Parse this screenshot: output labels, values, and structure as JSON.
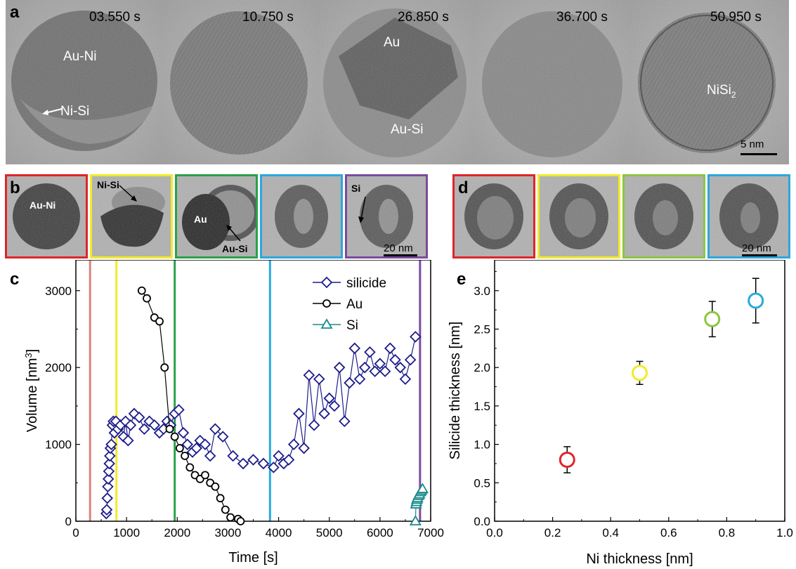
{
  "panel_a": {
    "letter": "a",
    "times": [
      "03.550 s",
      "10.750 s",
      "26.850 s",
      "36.700 s",
      "50.950 s"
    ],
    "labels": {
      "au_ni": "Au-Ni",
      "ni_si": "Ni-Si",
      "au": "Au",
      "au_si": "Au-Si",
      "nisi2": "NiSi",
      "nisi2_sub": "2"
    },
    "scale_bar": "5 nm"
  },
  "panel_b": {
    "letter": "b",
    "labels": {
      "au_ni": "Au-Ni",
      "ni_si": "Ni-Si",
      "au": "Au",
      "au_si": "Au-Si",
      "si": "Si"
    },
    "frame_colors": [
      "#e0242a",
      "#f2ea2c",
      "#2aa14a",
      "#2aa8de",
      "#7b4a9e"
    ],
    "scale_bar": "20 nm"
  },
  "panel_d": {
    "letter": "d",
    "frame_colors": [
      "#e0242a",
      "#f2ea2c",
      "#8cc63f",
      "#2aa8de"
    ],
    "scale_bar": "20 nm"
  },
  "panel_c": {
    "letter": "c",
    "chart_data": {
      "type": "line",
      "xlabel": "Time [s]",
      "ylabel": "Volume [nm",
      "ylabel_sup": "3",
      "ylabel_end": "]",
      "xlim": [
        0,
        7000
      ],
      "ylim": [
        0,
        3400
      ],
      "xticks": [
        0,
        1000,
        2000,
        3000,
        4000,
        5000,
        6000,
        7000
      ],
      "yticks": [
        0,
        1000,
        2000,
        3000
      ],
      "legend": "top-right",
      "vlines": [
        {
          "x": 280,
          "color": "#d9847f"
        },
        {
          "x": 800,
          "color": "#f2ea2c"
        },
        {
          "x": 1950,
          "color": "#2aa14a"
        },
        {
          "x": 3830,
          "color": "#2aa8de"
        },
        {
          "x": 6790,
          "color": "#7b4a9e"
        }
      ],
      "series": [
        {
          "name": "silicide",
          "color": "#1c1c8a",
          "marker": "diamond",
          "x": [
            600,
            610,
            620,
            630,
            640,
            650,
            660,
            670,
            680,
            700,
            720,
            740,
            760,
            790,
            830,
            880,
            940,
            980,
            1030,
            1080,
            1150,
            1250,
            1350,
            1450,
            1550,
            1650,
            1730,
            1800,
            1870,
            1950,
            2030,
            2120,
            2200,
            2300,
            2380,
            2450,
            2550,
            2650,
            2750,
            2900,
            3100,
            3300,
            3500,
            3700,
            3900,
            4000,
            4100,
            4200,
            4300,
            4400,
            4500,
            4600,
            4700,
            4800,
            4900,
            5000,
            5100,
            5200,
            5300,
            5400,
            5500,
            5600,
            5700,
            5800,
            5900,
            6000,
            6100,
            6200,
            6300,
            6400,
            6500,
            6600,
            6700
          ],
          "y": [
            100,
            150,
            300,
            450,
            550,
            650,
            750,
            850,
            950,
            1000,
            1250,
            1300,
            1150,
            1300,
            1200,
            1250,
            1100,
            1300,
            1050,
            1250,
            1400,
            1350,
            1200,
            1300,
            1250,
            1150,
            1200,
            1300,
            1250,
            1400,
            1450,
            1150,
            1000,
            900,
            950,
            1050,
            1000,
            850,
            1200,
            1100,
            850,
            750,
            800,
            750,
            700,
            850,
            750,
            800,
            1000,
            1400,
            950,
            1900,
            1250,
            1850,
            1400,
            1600,
            1500,
            2000,
            1300,
            1800,
            2250,
            1850,
            2000,
            2200,
            1950,
            2050,
            1950,
            2250,
            2100,
            2000,
            1850,
            2100,
            2400
          ]
        },
        {
          "name": "Au",
          "color": "#000000",
          "marker": "circle",
          "x": [
            1300,
            1400,
            1550,
            1650,
            1750,
            1850,
            1950,
            2050,
            2150,
            2250,
            2350,
            2450,
            2550,
            2650,
            2750,
            2850,
            2950,
            3050,
            3200,
            3250
          ],
          "y": [
            3000,
            2900,
            2650,
            2600,
            2000,
            1200,
            1100,
            950,
            850,
            700,
            600,
            550,
            600,
            500,
            450,
            300,
            150,
            50,
            30,
            0
          ]
        },
        {
          "name": "Si",
          "color": "#1b8a8a",
          "marker": "triangle",
          "x": [
            6700,
            6710,
            6720,
            6730,
            6740,
            6760,
            6780,
            6800,
            6820,
            6840
          ],
          "y": [
            0,
            220,
            250,
            280,
            300,
            330,
            350,
            380,
            400,
            420
          ]
        }
      ]
    }
  },
  "panel_e": {
    "letter": "e",
    "chart_data": {
      "type": "scatter",
      "xlabel": "Ni thickness [nm]",
      "ylabel": "Silicide thickness [nm]",
      "xlim": [
        0,
        1.0
      ],
      "ylim": [
        0,
        3.4
      ],
      "xticks": [
        "0.0",
        "0.2",
        "0.4",
        "0.6",
        "0.8",
        "1.0"
      ],
      "yticks": [
        "0.0",
        "0.5",
        "1.0",
        "1.5",
        "2.0",
        "2.5",
        "3.0"
      ],
      "points": [
        {
          "x": 0.25,
          "y": 0.8,
          "err": 0.17,
          "color": "#e0242a"
        },
        {
          "x": 0.5,
          "y": 1.93,
          "err": 0.15,
          "color": "#f2ea2c"
        },
        {
          "x": 0.75,
          "y": 2.63,
          "err": 0.23,
          "color": "#8cc63f"
        },
        {
          "x": 0.9,
          "y": 2.87,
          "err": 0.29,
          "color": "#2aa8de"
        }
      ]
    }
  }
}
